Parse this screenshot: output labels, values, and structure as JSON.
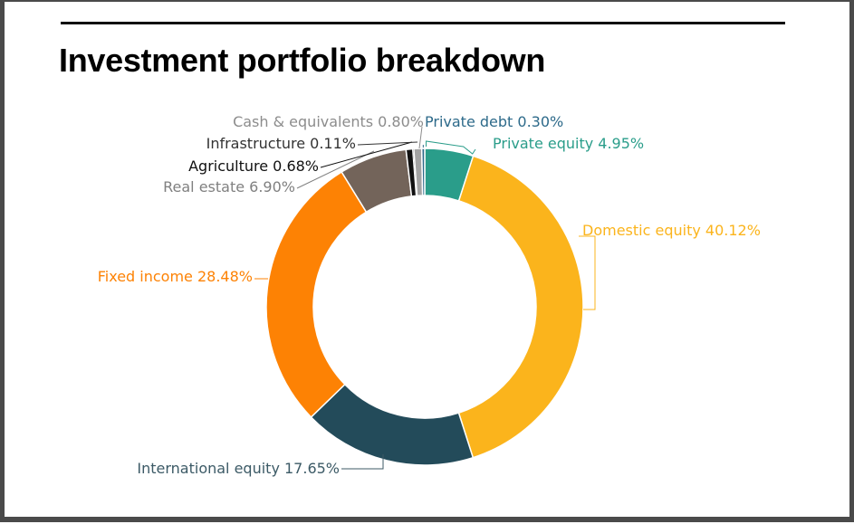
{
  "title": "Investment portfolio breakdown",
  "chart_data": {
    "type": "pie",
    "variant": "donut",
    "title": "Investment portfolio breakdown",
    "slices": [
      {
        "label": "Private equity",
        "value": 4.95,
        "display": "Private equity 4.95%",
        "color": "#2a9d8a"
      },
      {
        "label": "Domestic equity",
        "value": 40.12,
        "display": "Domestic equity 40.12%",
        "color": "#fbb41c"
      },
      {
        "label": "International equity",
        "value": 17.65,
        "display": "International equity 17.65%",
        "color": "#234b5a"
      },
      {
        "label": "Fixed income",
        "value": 28.48,
        "display": "Fixed income 28.48%",
        "color": "#fd8204"
      },
      {
        "label": "Real estate",
        "value": 6.9,
        "display": "Real estate 6.90%",
        "color": "#73645a"
      },
      {
        "label": "Agriculture",
        "value": 0.68,
        "display": "Agriculture 0.68%",
        "color": "#111111"
      },
      {
        "label": "Infrastructure",
        "value": 0.11,
        "display": "Infrastructure 0.11%",
        "color": "#4a4a4a"
      },
      {
        "label": "Cash & equivalents",
        "value": 0.8,
        "display": "Cash & equivalents 0.80%",
        "color": "#a3a3a3"
      },
      {
        "label": "Private debt",
        "value": 0.3,
        "display": "Private debt 0.30%",
        "color": "#2d6a8a"
      }
    ],
    "label_colors": {
      "Private equity": "#2a9d8a",
      "Domestic equity": "#fbb41c",
      "International equity": "#3c5a66",
      "Fixed income": "#fd8204",
      "Real estate": "#808080",
      "Agriculture": "#111111",
      "Infrastructure": "#333333",
      "Cash & equivalents": "#8c8c8c",
      "Private debt": "#2d6a8a"
    }
  }
}
